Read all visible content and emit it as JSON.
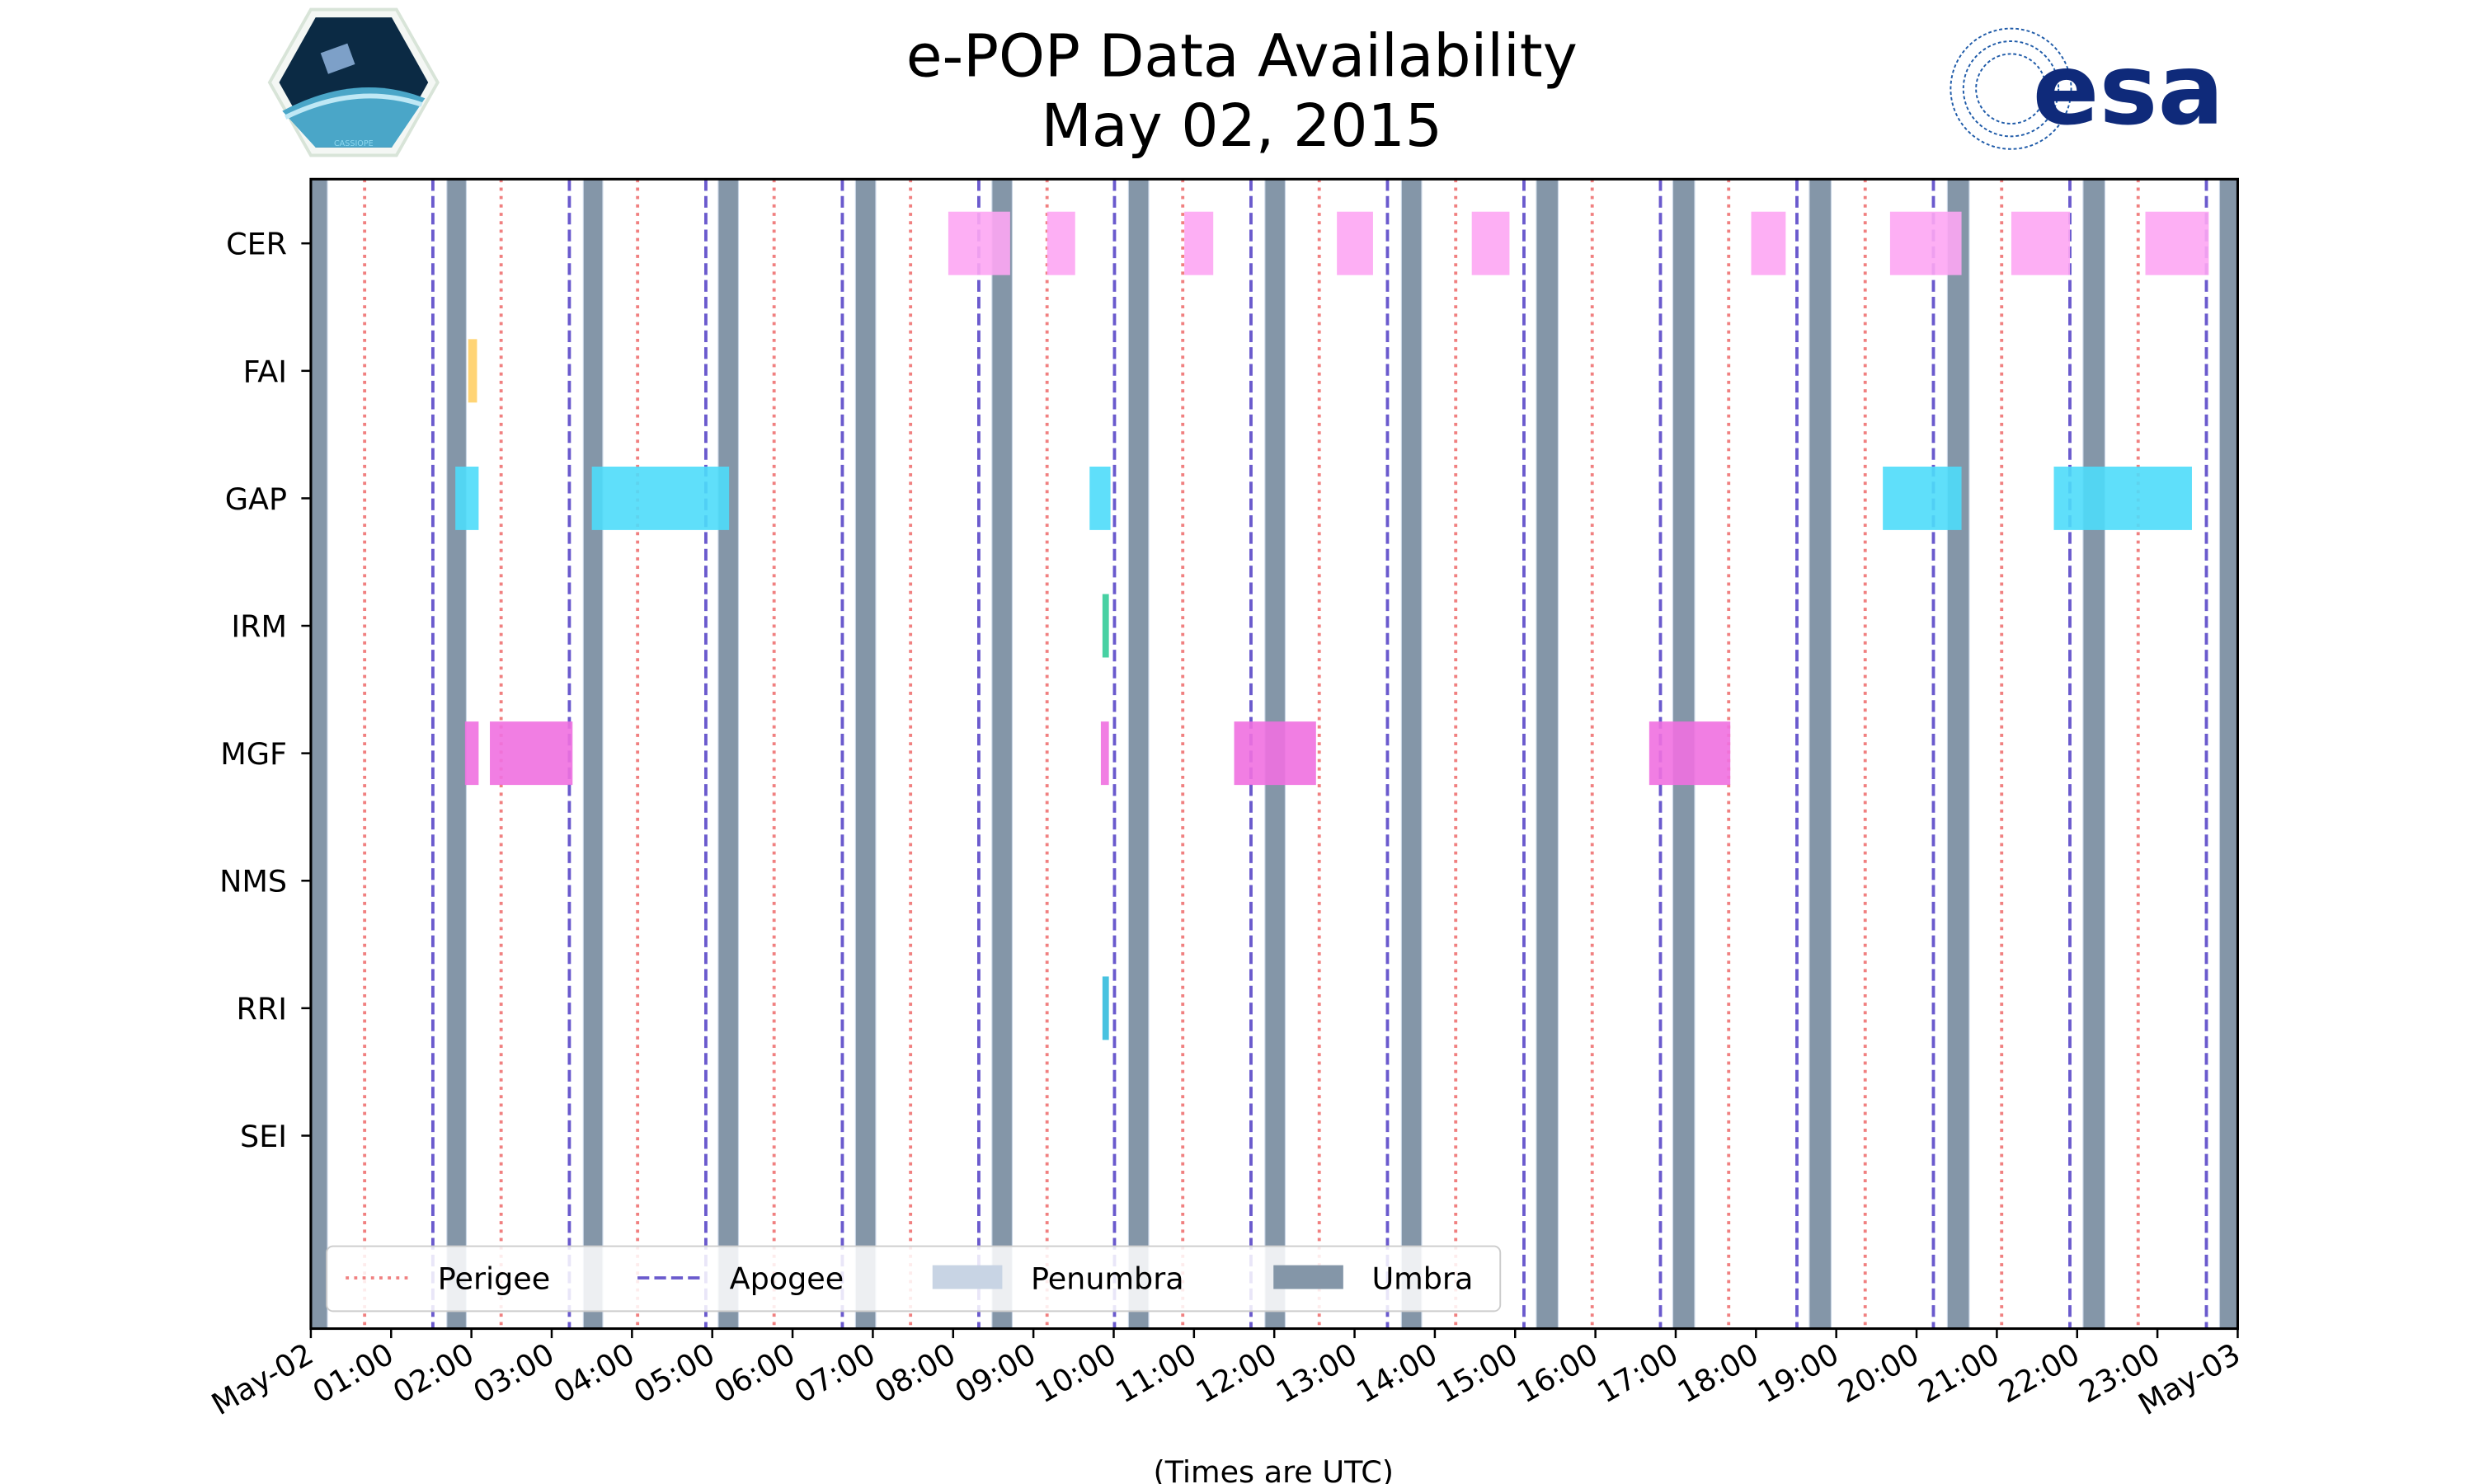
{
  "chart_data": {
    "type": "timeline",
    "title": "e-POP Data Availability",
    "subtitle": "May 02, 2015",
    "xlabel": "(Times are UTC)",
    "xlim_hours": [
      0,
      24
    ],
    "x_tick_labels": [
      "May-02",
      "01:00",
      "02:00",
      "03:00",
      "04:00",
      "05:00",
      "06:00",
      "07:00",
      "08:00",
      "09:00",
      "10:00",
      "11:00",
      "12:00",
      "13:00",
      "14:00",
      "15:00",
      "16:00",
      "17:00",
      "18:00",
      "19:00",
      "20:00",
      "21:00",
      "22:00",
      "23:00",
      "May-03"
    ],
    "categories": [
      "CER",
      "FAI",
      "GAP",
      "IRM",
      "MGF",
      "NMS",
      "RRI",
      "SEI"
    ],
    "legend": {
      "placement": "bottom",
      "entries": [
        {
          "label": "Perigee",
          "style": "dotted",
          "color": "#f08080"
        },
        {
          "label": "Apogee",
          "style": "dashed",
          "color": "#6a5acd"
        },
        {
          "label": "Penumbra",
          "style": "patch",
          "color": "#c8d4e4"
        },
        {
          "label": "Umbra",
          "style": "patch",
          "color": "#8496a8"
        }
      ]
    },
    "perigee_hours": [
      0.67,
      2.37,
      4.07,
      5.77,
      7.47,
      9.17,
      10.86,
      12.56,
      14.26,
      15.96,
      17.66,
      19.36,
      21.06,
      22.76
    ],
    "apogee_hours": [
      1.52,
      3.22,
      4.92,
      6.62,
      8.32,
      10.01,
      11.71,
      13.41,
      15.11,
      16.81,
      18.51,
      20.21,
      21.91,
      23.61
    ],
    "umbra_intervals_hours": [
      [
        0,
        0.2
      ],
      [
        1.7,
        1.93
      ],
      [
        3.4,
        3.63
      ],
      [
        5.08,
        5.32
      ],
      [
        6.79,
        7.03
      ],
      [
        8.49,
        8.73
      ],
      [
        10.19,
        10.43
      ],
      [
        11.89,
        12.13
      ],
      [
        13.59,
        13.83
      ],
      [
        15.27,
        15.53
      ],
      [
        16.97,
        17.23
      ],
      [
        18.67,
        18.93
      ],
      [
        20.39,
        20.65
      ],
      [
        22.08,
        22.34
      ],
      [
        23.78,
        24
      ]
    ],
    "series": [
      {
        "name": "CER",
        "color": "#fda6f3",
        "intervals": [
          [
            7.94,
            8.71
          ],
          [
            9.17,
            9.52
          ],
          [
            10.88,
            11.24
          ],
          [
            12.78,
            13.23
          ],
          [
            14.46,
            14.93
          ],
          [
            17.94,
            18.37
          ],
          [
            19.67,
            20.56
          ],
          [
            21.18,
            21.91
          ],
          [
            22.85,
            23.64
          ]
        ]
      },
      {
        "name": "FAI",
        "color": "#ffcf66",
        "intervals": [
          [
            1.96,
            2.07
          ]
        ]
      },
      {
        "name": "GAP",
        "color": "#4edcfa",
        "intervals": [
          [
            1.8,
            2.09
          ],
          [
            3.5,
            5.21
          ],
          [
            9.7,
            9.96
          ],
          [
            19.58,
            20.56
          ],
          [
            21.71,
            23.43
          ]
        ]
      },
      {
        "name": "IRM",
        "color": "#33cc99",
        "intervals": [
          [
            9.86,
            9.94
          ]
        ]
      },
      {
        "name": "MGF",
        "color": "#f070e0",
        "intervals": [
          [
            1.92,
            2.09
          ],
          [
            2.23,
            3.26
          ],
          [
            9.84,
            9.94
          ],
          [
            11.5,
            12.52
          ],
          [
            16.67,
            17.68
          ]
        ]
      },
      {
        "name": "NMS",
        "color": "#888888",
        "intervals": []
      },
      {
        "name": "RRI",
        "color": "#33bbdd",
        "intervals": [
          [
            9.86,
            9.94
          ]
        ]
      },
      {
        "name": "SEI",
        "color": "#888888",
        "intervals": []
      }
    ]
  },
  "logos": {
    "left": "CASSIOPE",
    "right": "esa"
  }
}
